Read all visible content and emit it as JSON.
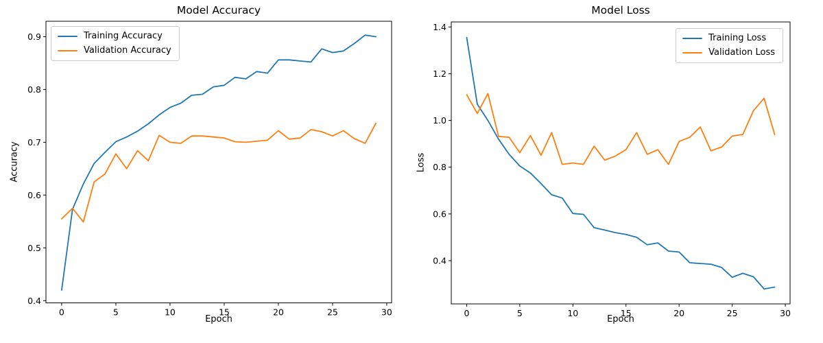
{
  "figure": {
    "background": "#ffffff",
    "text_color": "#000000"
  },
  "chart_data": [
    {
      "type": "line",
      "title": "Model Accuracy",
      "xlabel": "Epoch",
      "ylabel": "Accuracy",
      "grid": false,
      "legend_position": "upper-left",
      "x": [
        0,
        1,
        2,
        3,
        4,
        5,
        6,
        7,
        8,
        9,
        10,
        11,
        12,
        13,
        14,
        15,
        16,
        17,
        18,
        19,
        20,
        21,
        22,
        23,
        24,
        25,
        26,
        27,
        28,
        29
      ],
      "x_ticks": [
        0,
        5,
        10,
        15,
        20,
        25,
        30
      ],
      "x_tick_labels": [
        "0",
        "5",
        "10",
        "15",
        "20",
        "25",
        "30"
      ],
      "y_ticks": [
        0.4,
        0.5,
        0.6,
        0.7,
        0.8,
        0.9
      ],
      "y_tick_labels": [
        "0.4",
        "0.5",
        "0.6",
        "0.7",
        "0.8",
        "0.9"
      ],
      "xlim": [
        -1.45,
        30.45
      ],
      "ylim": [
        0.3958,
        0.9292
      ],
      "series": [
        {
          "name": "Training Accuracy",
          "color": "#1f77b4",
          "values": [
            0.42,
            0.573,
            0.621,
            0.66,
            0.681,
            0.701,
            0.71,
            0.721,
            0.735,
            0.752,
            0.766,
            0.774,
            0.789,
            0.791,
            0.805,
            0.808,
            0.823,
            0.82,
            0.834,
            0.831,
            0.856,
            0.856,
            0.854,
            0.852,
            0.877,
            0.87,
            0.873,
            0.887,
            0.903,
            0.9
          ]
        },
        {
          "name": "Validation Accuracy",
          "color": "#ff7f0e",
          "values": [
            0.555,
            0.575,
            0.549,
            0.625,
            0.64,
            0.678,
            0.65,
            0.684,
            0.665,
            0.713,
            0.7,
            0.698,
            0.712,
            0.712,
            0.71,
            0.708,
            0.701,
            0.7,
            0.702,
            0.704,
            0.722,
            0.706,
            0.708,
            0.724,
            0.72,
            0.712,
            0.722,
            0.707,
            0.698,
            0.736
          ]
        }
      ]
    },
    {
      "type": "line",
      "title": "Model Loss",
      "xlabel": "Epoch",
      "ylabel": "Loss",
      "grid": false,
      "legend_position": "upper-right",
      "x": [
        0,
        1,
        2,
        3,
        4,
        5,
        6,
        7,
        8,
        9,
        10,
        11,
        12,
        13,
        14,
        15,
        16,
        17,
        18,
        19,
        20,
        21,
        22,
        23,
        24,
        25,
        26,
        27,
        28,
        29
      ],
      "x_ticks": [
        0,
        5,
        10,
        15,
        20,
        25,
        30
      ],
      "x_tick_labels": [
        "0",
        "5",
        "10",
        "15",
        "20",
        "25",
        "30"
      ],
      "y_ticks": [
        0.4,
        0.6,
        0.8,
        1.0,
        1.2,
        1.4
      ],
      "y_tick_labels": [
        "0.4",
        "0.6",
        "0.8",
        "1.0",
        "1.2",
        "1.4"
      ],
      "xlim": [
        -1.45,
        30.45
      ],
      "ylim": [
        0.215,
        1.4215
      ],
      "series": [
        {
          "name": "Training Loss",
          "color": "#1f77b4",
          "values": [
            1.355,
            1.07,
            1.0,
            0.92,
            0.855,
            0.805,
            0.775,
            0.73,
            0.682,
            0.668,
            0.602,
            0.598,
            0.541,
            0.531,
            0.52,
            0.512,
            0.5,
            0.468,
            0.476,
            0.441,
            0.437,
            0.391,
            0.388,
            0.385,
            0.371,
            0.329,
            0.346,
            0.331,
            0.279,
            0.287
          ]
        },
        {
          "name": "Validation Loss",
          "color": "#ff7f0e",
          "values": [
            1.11,
            1.03,
            1.115,
            0.932,
            0.928,
            0.862,
            0.935,
            0.851,
            0.948,
            0.812,
            0.818,
            0.812,
            0.89,
            0.83,
            0.848,
            0.875,
            0.948,
            0.855,
            0.875,
            0.812,
            0.91,
            0.928,
            0.972,
            0.87,
            0.886,
            0.933,
            0.94,
            1.042,
            1.095,
            0.94
          ]
        }
      ]
    }
  ]
}
